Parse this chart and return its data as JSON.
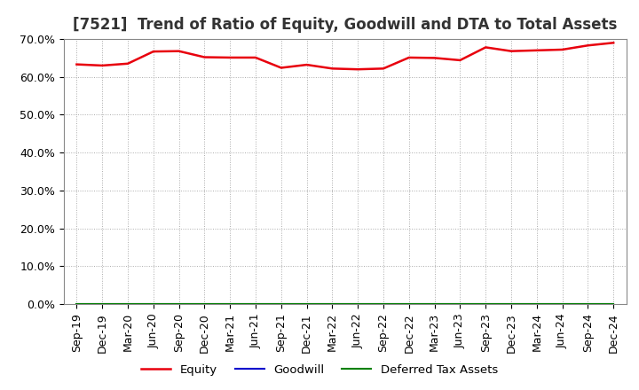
{
  "title": "[7521]  Trend of Ratio of Equity, Goodwill and DTA to Total Assets",
  "x_labels": [
    "Sep-19",
    "Dec-19",
    "Mar-20",
    "Jun-20",
    "Sep-20",
    "Dec-20",
    "Mar-21",
    "Jun-21",
    "Sep-21",
    "Dec-21",
    "Mar-22",
    "Jun-22",
    "Sep-22",
    "Dec-22",
    "Mar-23",
    "Jun-23",
    "Sep-23",
    "Dec-23",
    "Mar-24",
    "Jun-24",
    "Sep-24",
    "Dec-24"
  ],
  "equity": [
    0.633,
    0.63,
    0.635,
    0.667,
    0.668,
    0.652,
    0.651,
    0.651,
    0.624,
    0.632,
    0.622,
    0.62,
    0.622,
    0.651,
    0.65,
    0.644,
    0.678,
    0.668,
    0.67,
    0.672,
    0.683,
    0.69
  ],
  "goodwill": [
    0.0,
    0.0,
    0.0,
    0.0,
    0.0,
    0.0,
    0.0,
    0.0,
    0.0,
    0.0,
    0.0,
    0.0,
    0.0,
    0.0,
    0.0,
    0.0,
    0.0,
    0.0,
    0.0,
    0.0,
    0.0,
    0.0
  ],
  "dta": [
    0.0,
    0.0,
    0.0,
    0.0,
    0.0,
    0.0,
    0.0,
    0.0,
    0.0,
    0.0,
    0.0,
    0.0,
    0.0,
    0.0,
    0.0,
    0.0,
    0.0,
    0.0,
    0.0,
    0.0,
    0.0,
    0.0
  ],
  "equity_color": "#e8000d",
  "goodwill_color": "#0000cc",
  "dta_color": "#008000",
  "ylim": [
    0.0,
    0.7
  ],
  "yticks": [
    0.0,
    0.1,
    0.2,
    0.3,
    0.4,
    0.5,
    0.6,
    0.7
  ],
  "background_color": "#ffffff",
  "plot_bg_color": "#ffffff",
  "grid_color": "#aaaaaa",
  "title_fontsize": 12,
  "tick_fontsize": 9,
  "legend_labels": [
    "Equity",
    "Goodwill",
    "Deferred Tax Assets"
  ]
}
